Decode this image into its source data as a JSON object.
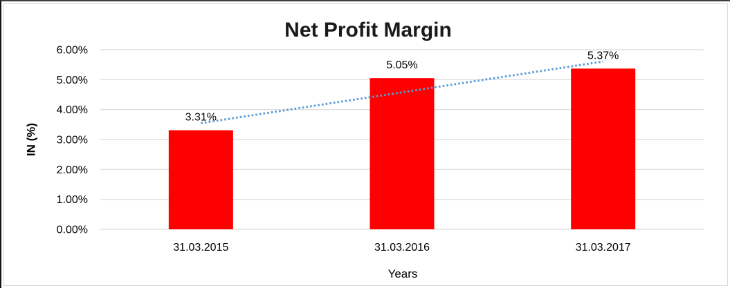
{
  "chart_data": {
    "type": "bar",
    "title": "Net Profit Margin",
    "xlabel": "Years",
    "ylabel": "IN (%)",
    "categories": [
      "31.03.2015",
      "31.03.2016",
      "31.03.2017"
    ],
    "series": [
      {
        "name": "Net Profit Margin",
        "values": [
          3.31,
          5.05,
          5.37
        ],
        "data_labels": [
          "3.31%",
          "5.05%",
          "5.37%"
        ],
        "color": "#ff0000"
      }
    ],
    "ylim": [
      0,
      6
    ],
    "ytick_step": 1,
    "ytick_labels": [
      "0.00%",
      "1.00%",
      "2.00%",
      "3.00%",
      "4.00%",
      "5.00%",
      "6.00%"
    ],
    "grid": true,
    "legend": "none",
    "trendline": {
      "type": "linear",
      "style": "dotted",
      "color": "#5b9bd5",
      "applies_to": "Net Profit Margin"
    }
  }
}
